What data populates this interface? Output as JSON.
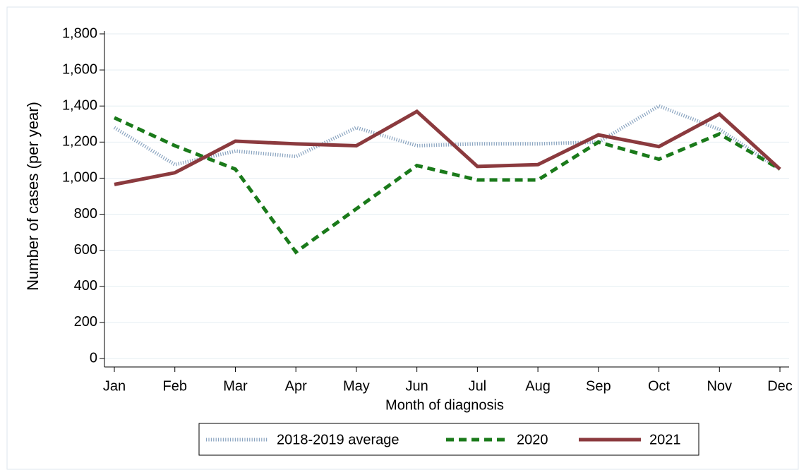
{
  "chart_data": {
    "type": "line",
    "xlabel": "Month of diagnosis",
    "ylabel": "Number of cases (per year)",
    "categories": [
      "Jan",
      "Feb",
      "Mar",
      "Apr",
      "May",
      "Jun",
      "Jul",
      "Aug",
      "Sep",
      "Oct",
      "Nov",
      "Dec"
    ],
    "series": [
      {
        "name": "2018-2019 average",
        "color": "#8aa4c0",
        "style": "dotted",
        "values": [
          1280,
          1075,
          1150,
          1120,
          1280,
          1180,
          1190,
          1190,
          1200,
          1400,
          1270,
          1050
        ]
      },
      {
        "name": "2020",
        "color": "#1a7a1a",
        "style": "dashed",
        "values": [
          1335,
          1180,
          1050,
          590,
          830,
          1070,
          990,
          990,
          1200,
          1105,
          1245,
          1050
        ]
      },
      {
        "name": "2021",
        "color": "#8b3a3e",
        "style": "solid",
        "values": [
          965,
          1030,
          1205,
          1190,
          1180,
          1370,
          1065,
          1075,
          1240,
          1175,
          1355,
          1050
        ]
      }
    ],
    "ylim": [
      0,
      1800
    ],
    "yticks": [
      0,
      200,
      400,
      600,
      800,
      {
        "value": 1000,
        "label": "1,000"
      },
      {
        "value": 1200,
        "label": "1,200"
      },
      {
        "value": 1400,
        "label": "1,400"
      },
      {
        "value": 1600,
        "label": "1,600"
      },
      {
        "value": 1800,
        "label": "1,800"
      }
    ],
    "grid": true,
    "legend": "bottom"
  }
}
